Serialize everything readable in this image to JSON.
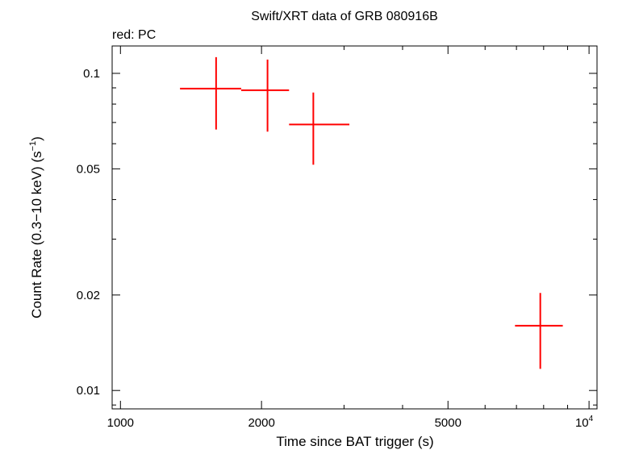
{
  "chart_data": {
    "type": "scatter",
    "title": "Swift/XRT data of GRB 080916B",
    "subtitle": "red: PC",
    "xlabel": "Time since BAT trigger (s)",
    "ylabel_main": "Count Rate (0.3−10 keV) (s",
    "ylabel_sup": "−1",
    "ylabel_close": ")",
    "x_scale": "log",
    "y_scale": "log",
    "xlim": [
      960,
      10400
    ],
    "ylim": [
      0.00875,
      0.122
    ],
    "x_ticks": [
      {
        "value": 1000,
        "label": "1000"
      },
      {
        "value": 2000,
        "label": "2000"
      },
      {
        "value": 5000,
        "label": "5000"
      }
    ],
    "x_tick_power": {
      "value": 10000,
      "base": "10",
      "exp": "4"
    },
    "y_ticks": [
      {
        "value": 0.01,
        "label": "0.01"
      },
      {
        "value": 0.02,
        "label": "0.02"
      },
      {
        "value": 0.05,
        "label": "0.05"
      },
      {
        "value": 0.1,
        "label": "0.1"
      }
    ],
    "series": [
      {
        "color": "#ff0000",
        "points": [
          {
            "x": 1600,
            "x_lo": 1340,
            "x_hi": 1810,
            "y": 0.0895,
            "y_lo": 0.0665,
            "y_hi": 0.1125
          },
          {
            "x": 2060,
            "x_lo": 1810,
            "x_hi": 2290,
            "y": 0.0885,
            "y_lo": 0.0655,
            "y_hi": 0.1105
          },
          {
            "x": 2580,
            "x_lo": 2290,
            "x_hi": 3080,
            "y": 0.069,
            "y_lo": 0.0515,
            "y_hi": 0.087
          },
          {
            "x": 7870,
            "x_lo": 6950,
            "x_hi": 8790,
            "y": 0.016,
            "y_lo": 0.0117,
            "y_hi": 0.0203
          }
        ]
      }
    ]
  }
}
